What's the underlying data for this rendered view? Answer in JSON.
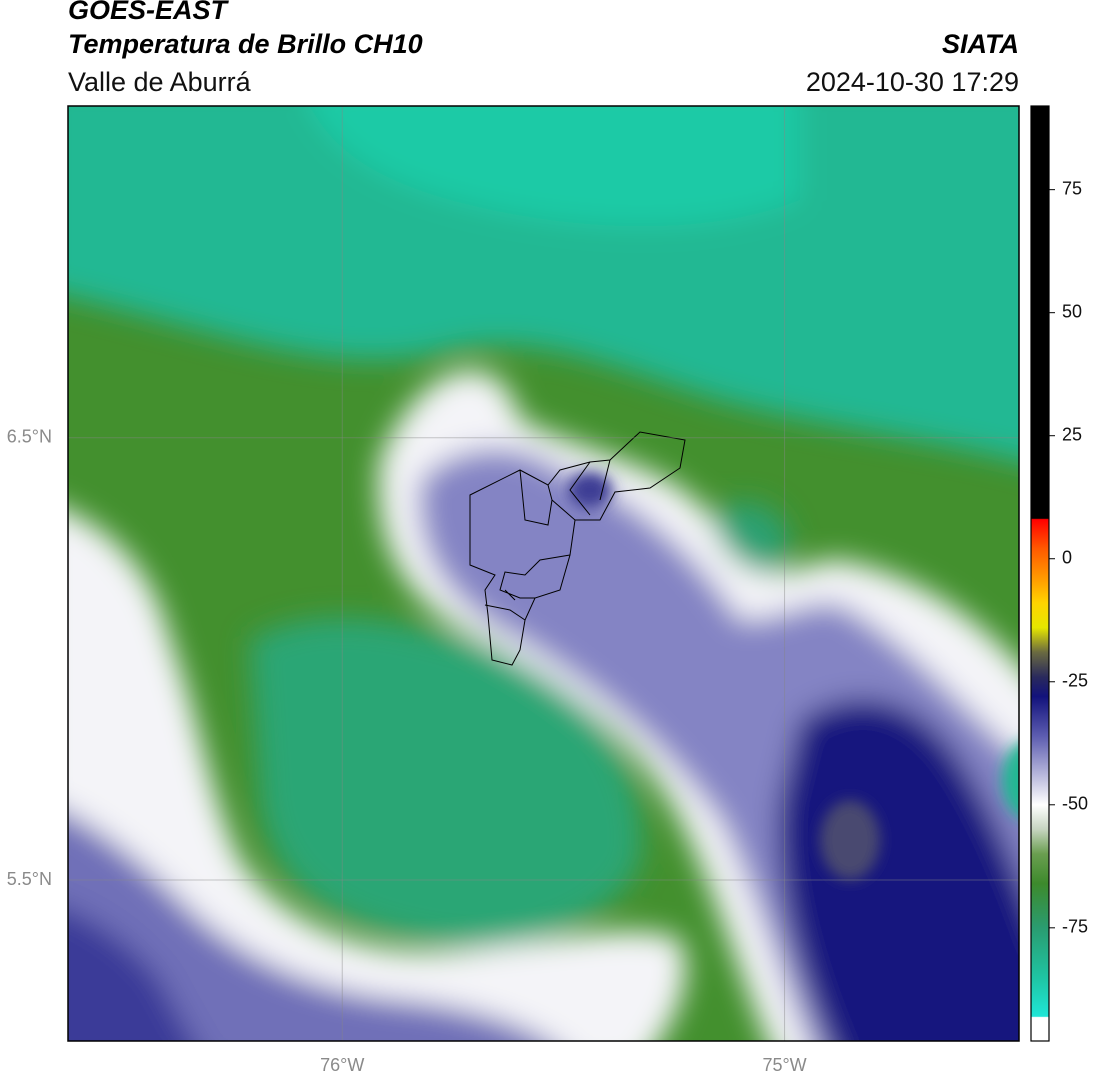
{
  "header": {
    "title": "GOES-EAST",
    "subtitle": "Temperatura de Brillo CH10",
    "region": "Valle de Aburrá",
    "source": "SIATA",
    "datetime": "2024-10-30 17:29"
  },
  "map": {
    "xlim": [
      -76.62,
      -74.47
    ],
    "ylim": [
      5.136,
      7.25
    ],
    "xticks": [
      {
        "value": -76,
        "label": "76°W"
      },
      {
        "value": -75,
        "label": "75°W"
      }
    ],
    "yticks": [
      {
        "value": 6.5,
        "label": "6.5°N"
      },
      {
        "value": 5.5,
        "label": "5.5°N"
      }
    ],
    "grid": true
  },
  "colorbar": {
    "lim": [
      -98,
      92
    ],
    "ticks": [
      75,
      50,
      25,
      0,
      -25,
      -50,
      -75
    ],
    "stops": [
      {
        "value": -98,
        "color": "#ffffff"
      },
      {
        "value": -93.2,
        "color": "#ffffff"
      },
      {
        "value": -93,
        "color": "#1fe6d6"
      },
      {
        "value": -85,
        "color": "#1fc4a2"
      },
      {
        "value": -75,
        "color": "#2a9c70"
      },
      {
        "value": -66,
        "color": "#3d8a2c"
      },
      {
        "value": -60,
        "color": "#6a9e50"
      },
      {
        "value": -55,
        "color": "#c6d4c0"
      },
      {
        "value": -50,
        "color": "#ffffff"
      },
      {
        "value": -45,
        "color": "#c4c4e2"
      },
      {
        "value": -36,
        "color": "#5c5cb0"
      },
      {
        "value": -28,
        "color": "#12127c"
      },
      {
        "value": -24,
        "color": "#2a2a5c"
      },
      {
        "value": -19,
        "color": "#6a6a40"
      },
      {
        "value": -14,
        "color": "#e6e600"
      },
      {
        "value": -9,
        "color": "#ffd400"
      },
      {
        "value": -4,
        "color": "#ff9a00"
      },
      {
        "value": 2,
        "color": "#ff5a00"
      },
      {
        "value": 8,
        "color": "#ff0000"
      },
      {
        "value": 8.2,
        "color": "#000000"
      },
      {
        "value": 92,
        "color": "#000000"
      }
    ]
  }
}
